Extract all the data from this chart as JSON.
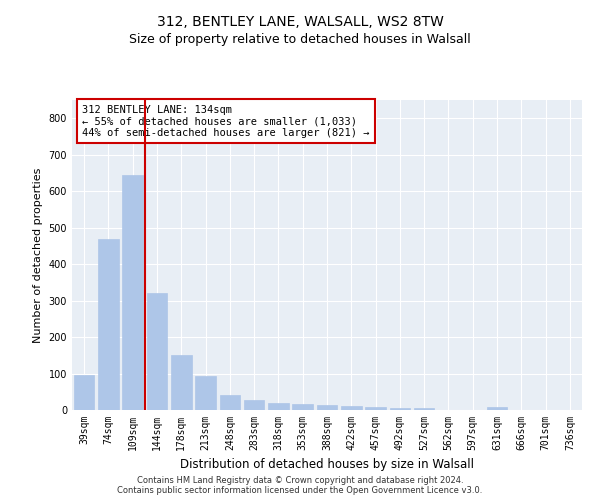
{
  "title_line1": "312, BENTLEY LANE, WALSALL, WS2 8TW",
  "title_line2": "Size of property relative to detached houses in Walsall",
  "xlabel": "Distribution of detached houses by size in Walsall",
  "ylabel": "Number of detached properties",
  "categories": [
    "39sqm",
    "74sqm",
    "109sqm",
    "144sqm",
    "178sqm",
    "213sqm",
    "248sqm",
    "283sqm",
    "318sqm",
    "353sqm",
    "388sqm",
    "422sqm",
    "457sqm",
    "492sqm",
    "527sqm",
    "562sqm",
    "597sqm",
    "631sqm",
    "666sqm",
    "701sqm",
    "736sqm"
  ],
  "values": [
    95,
    470,
    645,
    320,
    152,
    93,
    42,
    27,
    18,
    17,
    14,
    11,
    8,
    6,
    5,
    0,
    0,
    7,
    0,
    0,
    0
  ],
  "bar_color": "#aec6e8",
  "bar_edge_color": "#aec6e8",
  "vline_color": "#cc0000",
  "vline_x": 2.5,
  "annotation_text": "312 BENTLEY LANE: 134sqm\n← 55% of detached houses are smaller (1,033)\n44% of semi-detached houses are larger (821) →",
  "annotation_box_color": "#ffffff",
  "annotation_box_edge": "#cc0000",
  "ylim": [
    0,
    850
  ],
  "yticks": [
    0,
    100,
    200,
    300,
    400,
    500,
    600,
    700,
    800
  ],
  "plot_bg_color": "#e8eef5",
  "footer_line1": "Contains HM Land Registry data © Crown copyright and database right 2024.",
  "footer_line2": "Contains public sector information licensed under the Open Government Licence v3.0.",
  "title_fontsize": 10,
  "subtitle_fontsize": 9,
  "tick_fontsize": 7,
  "ylabel_fontsize": 8,
  "xlabel_fontsize": 8.5,
  "annot_fontsize": 7.5
}
